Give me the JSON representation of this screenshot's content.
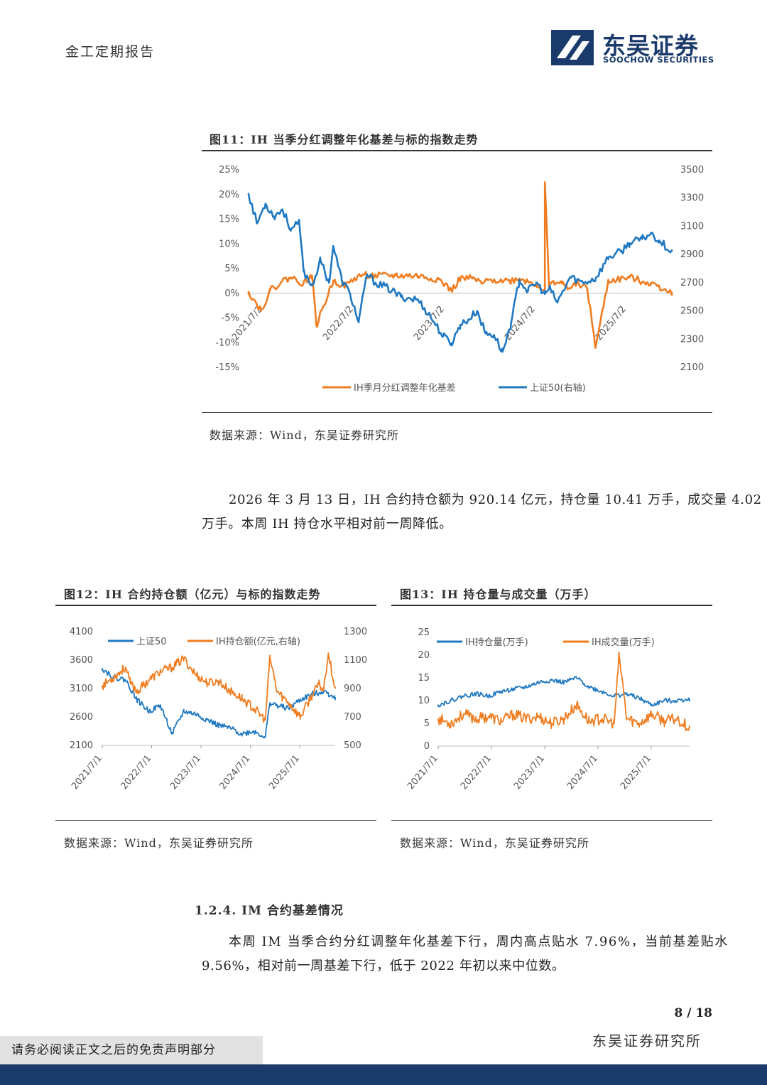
{
  "header": {
    "report_type": "金工定期报告",
    "logo_cn": "东吴证券",
    "logo_en": "SOOCHOW SECURITIES"
  },
  "figure11": {
    "title": "图11：IH 当季分红调整年化基差与标的指数走势",
    "source": "数据来源：Wind，东吴证券研究所"
  },
  "paragraph1": {
    "line1": "2026 年 3 月 13 日，IH 合约持仓额为 920.14 亿元，持仓量 10.41 万手，成交量 4.02",
    "line2": "万手。本周 IH 持仓水平相对前一周降低。"
  },
  "figure12": {
    "title": "图12：IH 合约持仓额（亿元）与标的指数走势",
    "source": "数据来源：Wind，东吴证券研究所"
  },
  "figure13": {
    "title": "图13：IH 持仓量与成交量（万手）",
    "source": "数据来源：Wind，东吴证券研究所"
  },
  "section": {
    "heading": "1.2.4.  IM 合约基差情况"
  },
  "paragraph2": {
    "line1": "本周 IM 当季合约分红调整年化基差下行，周内高点贴水 7.96%，当前基差贴水",
    "line2": "9.56%，相对前一周基差下行，低于 2022 年初以来中位数。"
  },
  "footer": {
    "page": "8 / 18",
    "org": "东吴证券研究所",
    "disclaimer": "请务必阅读正文之后的免责声明部分"
  },
  "colors": {
    "blue": "#1f78c1",
    "orange": "#f07c1f",
    "navy": "#1a3a6b"
  },
  "chart_data": [
    {
      "id": "fig11",
      "type": "line",
      "title": "IH 当季分红调整年化基差与标的指数走势",
      "x_tick_labels": [
        "2021/7/2",
        "2022/7/2",
        "2023/7/2",
        "2024/7/2",
        "2025/7/2"
      ],
      "y_left_ticks": [
        "25%",
        "20%",
        "15%",
        "10%",
        "5%",
        "0%",
        "-5%",
        "-10%",
        "-15%"
      ],
      "y_left_range": [
        -15,
        25
      ],
      "y_right_ticks": [
        "3500",
        "3300",
        "3100",
        "2900",
        "2700",
        "2500",
        "2300",
        "2100"
      ],
      "y_right_range": [
        2100,
        3500
      ],
      "legend": [
        "IH季月分红调整年化基差",
        "上证50(右轴)"
      ],
      "series": [
        {
          "name": "IH季月分红调整年化基差",
          "axis": "left",
          "color": "#f07c1f",
          "x": [
            0,
            0.03,
            0.05,
            0.08,
            0.1,
            0.13,
            0.15,
            0.16,
            0.2,
            0.23,
            0.25,
            0.27,
            0.3,
            0.35,
            0.4,
            0.45,
            0.48,
            0.5,
            0.53,
            0.55,
            0.58,
            0.62,
            0.64,
            0.66,
            0.68,
            0.7,
            0.7,
            0.71,
            0.72,
            0.74,
            0.76,
            0.78,
            0.8,
            0.82,
            0.85,
            0.9,
            0.95,
            1.0
          ],
          "values": [
            0.3,
            -3.5,
            0.5,
            2.5,
            3.2,
            2.0,
            3.6,
            -6.5,
            2.5,
            1.5,
            3.0,
            3.8,
            3.5,
            3.6,
            3.5,
            2.8,
            0.5,
            3.0,
            3.0,
            2.0,
            2.8,
            2.5,
            3.0,
            2.4,
            1.8,
            0.5,
            22.5,
            1.0,
            2.5,
            2.0,
            1.0,
            2.0,
            1.0,
            -11.0,
            2.5,
            3.2,
            2.0,
            0.3
          ]
        },
        {
          "name": "上证50(右轴)",
          "axis": "right",
          "color": "#1f78c1",
          "x": [
            0,
            0.02,
            0.04,
            0.06,
            0.08,
            0.1,
            0.12,
            0.13,
            0.15,
            0.17,
            0.19,
            0.2,
            0.22,
            0.24,
            0.26,
            0.28,
            0.3,
            0.33,
            0.36,
            0.4,
            0.43,
            0.46,
            0.48,
            0.5,
            0.52,
            0.54,
            0.56,
            0.58,
            0.6,
            0.62,
            0.64,
            0.66,
            0.68,
            0.7,
            0.71,
            0.73,
            0.76,
            0.79,
            0.82,
            0.85,
            0.88,
            0.9,
            0.93,
            0.95,
            0.97,
            1.0
          ],
          "values": [
            3330,
            3120,
            3260,
            3170,
            3220,
            3080,
            3120,
            2780,
            2680,
            2860,
            2700,
            2960,
            2720,
            2620,
            2420,
            2760,
            2700,
            2660,
            2600,
            2580,
            2460,
            2320,
            2270,
            2400,
            2440,
            2500,
            2340,
            2330,
            2210,
            2410,
            2720,
            2640,
            2700,
            2620,
            2660,
            2560,
            2740,
            2700,
            2730,
            2880,
            2920,
            2980,
            3010,
            3050,
            3000,
            2920
          ]
        }
      ]
    },
    {
      "id": "fig12",
      "type": "line",
      "title": "IH 合约持仓额（亿元）与标的指数走势",
      "x_tick_labels": [
        "2021/7/1",
        "2022/7/1",
        "2023/7/1",
        "2024/7/1",
        "2025/7/1"
      ],
      "y_left_ticks": [
        "4100",
        "3600",
        "3100",
        "2600",
        "2100"
      ],
      "y_left_range": [
        2100,
        4100
      ],
      "y_right_ticks": [
        "1300",
        "1100",
        "900",
        "700",
        "500"
      ],
      "y_right_range": [
        500,
        1300
      ],
      "legend": [
        "上证50",
        "IH持仓额(亿元,右轴)"
      ],
      "series": [
        {
          "name": "上证50",
          "axis": "left",
          "color": "#1f78c1",
          "x": [
            0,
            0.05,
            0.1,
            0.15,
            0.2,
            0.25,
            0.3,
            0.35,
            0.4,
            0.45,
            0.5,
            0.55,
            0.6,
            0.65,
            0.7,
            0.72,
            0.75,
            0.8,
            0.85,
            0.9,
            0.95,
            1.0
          ],
          "values": [
            3450,
            3300,
            3250,
            2900,
            2700,
            2800,
            2300,
            2700,
            2650,
            2550,
            2450,
            2400,
            2300,
            2350,
            2250,
            2850,
            2800,
            2750,
            2900,
            3000,
            3050,
            2950
          ]
        },
        {
          "name": "IH持仓额(亿元,右轴)",
          "axis": "right",
          "color": "#f07c1f",
          "x": [
            0,
            0.05,
            0.1,
            0.12,
            0.15,
            0.2,
            0.25,
            0.3,
            0.35,
            0.4,
            0.45,
            0.5,
            0.55,
            0.6,
            0.65,
            0.7,
            0.72,
            0.75,
            0.8,
            0.85,
            0.9,
            0.93,
            0.95,
            0.97,
            1.0
          ],
          "values": [
            920,
            980,
            1050,
            940,
            880,
            960,
            1020,
            1050,
            1110,
            1000,
            940,
            950,
            880,
            830,
            760,
            680,
            1120,
            880,
            800,
            700,
            850,
            930,
            890,
            1150,
            900
          ]
        }
      ]
    },
    {
      "id": "fig13",
      "type": "line",
      "title": "IH 持仓量与成交量（万手）",
      "x_tick_labels": [
        "2021/7/1",
        "2022/7/1",
        "2023/7/1",
        "2024/7/1",
        "2025/7/1"
      ],
      "y_left_ticks": [
        "25",
        "20",
        "15",
        "10",
        "5",
        "0"
      ],
      "y_left_range": [
        0,
        25
      ],
      "legend": [
        "IH持仓量(万手)",
        "IH成交量(万手)"
      ],
      "series": [
        {
          "name": "IH持仓量(万手)",
          "color": "#1f78c1",
          "x": [
            0,
            0.05,
            0.1,
            0.15,
            0.2,
            0.25,
            0.3,
            0.35,
            0.4,
            0.45,
            0.5,
            0.55,
            0.6,
            0.65,
            0.7,
            0.75,
            0.8,
            0.85,
            0.9,
            0.95,
            1.0
          ],
          "values": [
            9,
            10,
            11,
            11.5,
            11,
            12,
            12.5,
            13,
            14,
            14.5,
            14,
            15,
            13,
            12,
            11,
            11.5,
            10.5,
            9,
            10,
            10,
            10.4
          ]
        },
        {
          "name": "IH成交量(万手)",
          "color": "#f07c1f",
          "x": [
            0,
            0.05,
            0.1,
            0.15,
            0.2,
            0.25,
            0.3,
            0.35,
            0.4,
            0.45,
            0.5,
            0.55,
            0.6,
            0.65,
            0.7,
            0.72,
            0.75,
            0.8,
            0.85,
            0.9,
            0.95,
            1.0
          ],
          "values": [
            6,
            5,
            7,
            6,
            6.5,
            5.5,
            7,
            6,
            6.5,
            5,
            6,
            9,
            5.5,
            6,
            5,
            20,
            6,
            5,
            7,
            5.5,
            6,
            4
          ]
        }
      ]
    }
  ]
}
